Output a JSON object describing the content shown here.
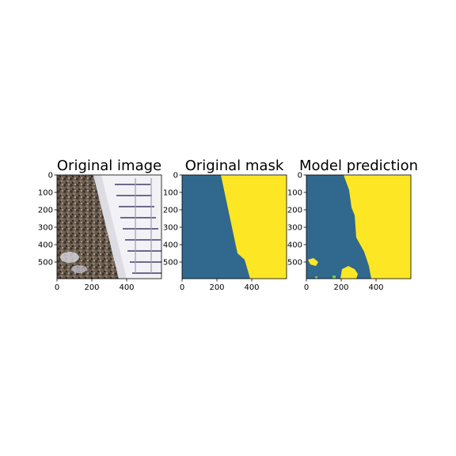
{
  "figure": {
    "panels": [
      {
        "id": "original-image",
        "title": "Original image",
        "kind": "satellite-photo"
      },
      {
        "id": "original-mask",
        "title": "Original mask",
        "kind": "segmentation-mask"
      },
      {
        "id": "model-prediction",
        "title": "Model prediction",
        "kind": "segmentation-mask"
      }
    ],
    "x_ticks": [
      "0",
      "200",
      "400"
    ],
    "y_ticks": [
      "0",
      "100",
      "200",
      "300",
      "400",
      "500"
    ]
  },
  "colors": {
    "mask_background": "#31688e",
    "mask_foreground": "#fde725",
    "road": "#e6e6ea",
    "forest_dark": "#4a4038",
    "building_roof": "#f0f0f4",
    "building_shadow": "#5a4f78"
  }
}
